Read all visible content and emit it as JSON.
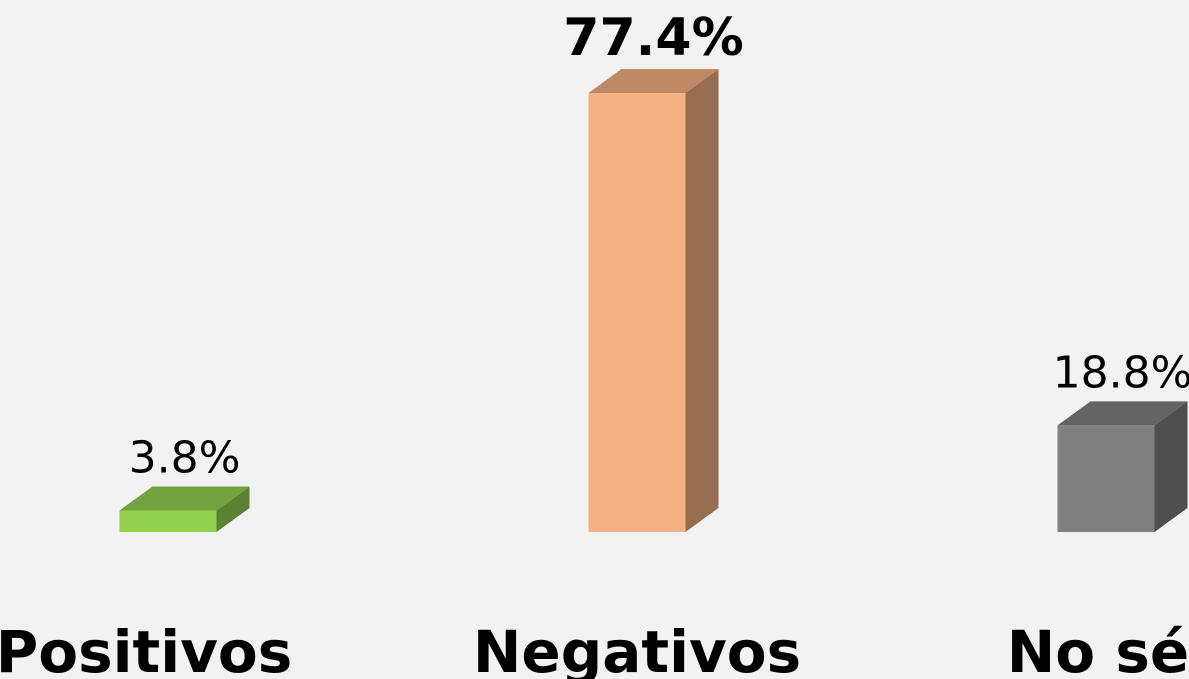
{
  "chart_data": {
    "type": "bar3d",
    "categories": [
      "Positivos",
      "Negativos",
      "No sé"
    ],
    "values": [
      3.8,
      77.4,
      18.8
    ],
    "value_labels": [
      "3.8%",
      "77.4%",
      "18.8%"
    ],
    "colors": [
      "#92d050",
      "#f4b183",
      "#808080"
    ]
  }
}
